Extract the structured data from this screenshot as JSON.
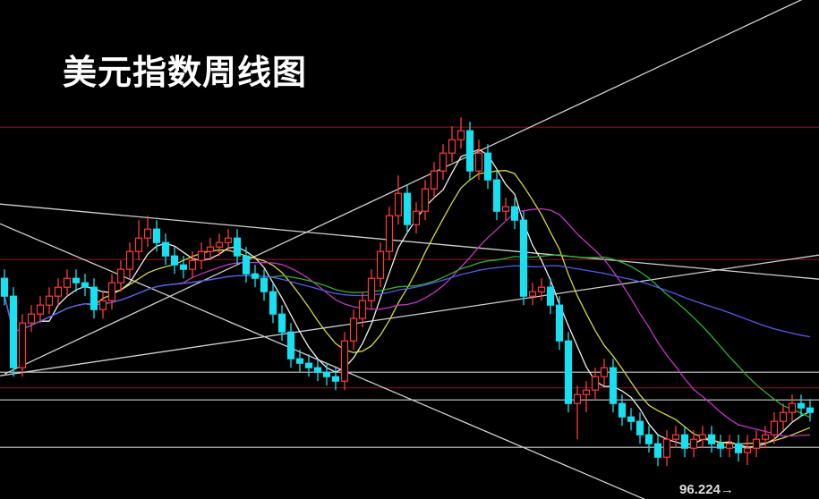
{
  "chart_data": {
    "type": "candlestick",
    "title": "美元指数周线图",
    "x_unit": "week",
    "grid": false,
    "colors": {
      "up": "#ff3b3b",
      "down": "#18e0f0",
      "background": "#000000"
    },
    "candles": [
      [
        100.4,
        100.6,
        99.8,
        100.0
      ],
      [
        100.0,
        100.2,
        98.2,
        98.4
      ],
      [
        98.4,
        99.6,
        98.2,
        99.4
      ],
      [
        99.4,
        99.8,
        99.2,
        99.6
      ],
      [
        99.6,
        100.0,
        99.4,
        99.8
      ],
      [
        99.8,
        100.2,
        99.6,
        100.0
      ],
      [
        100.0,
        100.4,
        99.8,
        100.2
      ],
      [
        100.2,
        100.6,
        100.0,
        100.4
      ],
      [
        100.4,
        100.6,
        100.1,
        100.3
      ],
      [
        100.3,
        100.5,
        100.0,
        100.2
      ],
      [
        100.2,
        100.4,
        99.5,
        99.7
      ],
      [
        99.7,
        100.1,
        99.5,
        99.9
      ],
      [
        99.9,
        100.5,
        99.7,
        100.3
      ],
      [
        100.3,
        100.8,
        100.1,
        100.6
      ],
      [
        100.6,
        101.2,
        100.4,
        101.0
      ],
      [
        101.0,
        101.7,
        100.8,
        101.3
      ],
      [
        101.3,
        101.8,
        101.1,
        101.5
      ],
      [
        101.5,
        101.7,
        101.0,
        101.2
      ],
      [
        101.2,
        101.4,
        100.7,
        100.9
      ],
      [
        100.9,
        101.1,
        100.5,
        100.7
      ],
      [
        100.7,
        100.9,
        100.4,
        100.6
      ],
      [
        100.6,
        101.0,
        100.4,
        100.8
      ],
      [
        100.8,
        101.2,
        100.6,
        101.0
      ],
      [
        101.0,
        101.3,
        100.8,
        101.1
      ],
      [
        101.1,
        101.4,
        100.9,
        101.2
      ],
      [
        101.2,
        101.5,
        101.0,
        101.3
      ],
      [
        101.3,
        101.5,
        100.7,
        100.9
      ],
      [
        100.9,
        101.1,
        100.3,
        100.5
      ],
      [
        100.5,
        100.7,
        100.2,
        100.4
      ],
      [
        100.4,
        100.6,
        99.9,
        100.1
      ],
      [
        100.1,
        100.3,
        99.4,
        99.6
      ],
      [
        99.6,
        99.8,
        99.0,
        99.2
      ],
      [
        99.2,
        99.4,
        98.4,
        98.6
      ],
      [
        98.6,
        98.8,
        98.3,
        98.5
      ],
      [
        98.5,
        98.7,
        98.2,
        98.4
      ],
      [
        98.4,
        98.6,
        98.1,
        98.3
      ],
      [
        98.3,
        98.5,
        98.0,
        98.2
      ],
      [
        98.2,
        98.4,
        97.9,
        98.1
      ],
      [
        98.1,
        99.2,
        97.9,
        99.0
      ],
      [
        99.0,
        99.7,
        98.8,
        99.5
      ],
      [
        99.5,
        100.1,
        99.3,
        99.9
      ],
      [
        99.9,
        100.6,
        99.7,
        100.4
      ],
      [
        100.4,
        101.2,
        100.2,
        101.0
      ],
      [
        101.0,
        102.0,
        100.8,
        101.8
      ],
      [
        101.8,
        102.7,
        101.6,
        102.3
      ],
      [
        102.3,
        102.5,
        101.4,
        101.6
      ],
      [
        101.6,
        102.1,
        101.4,
        101.9
      ],
      [
        101.9,
        102.6,
        101.7,
        102.4
      ],
      [
        102.4,
        103.0,
        102.2,
        102.8
      ],
      [
        102.8,
        103.4,
        102.6,
        103.2
      ],
      [
        103.2,
        103.8,
        103.0,
        103.5
      ],
      [
        103.5,
        104.0,
        103.3,
        103.7
      ],
      [
        103.7,
        103.9,
        102.6,
        102.8
      ],
      [
        102.8,
        103.5,
        102.6,
        103.2
      ],
      [
        103.2,
        103.4,
        102.4,
        102.6
      ],
      [
        102.6,
        102.8,
        101.7,
        101.9
      ],
      [
        101.9,
        102.2,
        101.7,
        102.0
      ],
      [
        102.0,
        102.2,
        101.5,
        101.7
      ],
      [
        101.7,
        101.9,
        99.8,
        100.0
      ],
      [
        100.0,
        100.3,
        99.8,
        100.1
      ],
      [
        100.1,
        100.4,
        99.9,
        100.2
      ],
      [
        100.2,
        100.4,
        99.6,
        99.8
      ],
      [
        99.8,
        100.0,
        98.8,
        99.0
      ],
      [
        99.0,
        99.2,
        97.4,
        97.6
      ],
      [
        97.6,
        98.0,
        96.8,
        97.8
      ],
      [
        97.8,
        98.1,
        97.4,
        97.9
      ],
      [
        97.9,
        98.4,
        97.7,
        98.2
      ],
      [
        98.2,
        98.6,
        98.0,
        98.4
      ],
      [
        98.4,
        98.6,
        97.4,
        97.6
      ],
      [
        97.6,
        97.8,
        97.1,
        97.3
      ],
      [
        97.3,
        97.5,
        97.0,
        97.2
      ],
      [
        97.2,
        97.4,
        96.7,
        96.9
      ],
      [
        96.9,
        97.1,
        96.5,
        96.7
      ],
      [
        96.7,
        96.9,
        96.2,
        96.4
      ],
      [
        96.4,
        97.0,
        96.2,
        96.8
      ],
      [
        96.8,
        97.1,
        96.6,
        96.9
      ],
      [
        96.9,
        97.1,
        96.4,
        96.6
      ],
      [
        96.6,
        97.0,
        96.4,
        96.8
      ],
      [
        96.8,
        97.1,
        96.6,
        96.9
      ],
      [
        96.9,
        97.1,
        96.5,
        96.7
      ],
      [
        96.7,
        96.9,
        96.4,
        96.6
      ],
      [
        96.6,
        96.9,
        96.4,
        96.7
      ],
      [
        96.7,
        96.9,
        96.3,
        96.5
      ],
      [
        96.5,
        96.9,
        96.224,
        96.6
      ],
      [
        96.6,
        97.0,
        96.4,
        96.8
      ],
      [
        96.8,
        97.1,
        96.6,
        96.9
      ],
      [
        96.9,
        97.4,
        96.7,
        97.2
      ],
      [
        97.2,
        97.6,
        97.0,
        97.4
      ],
      [
        97.4,
        97.8,
        97.2,
        97.6
      ],
      [
        97.6,
        97.8,
        97.3,
        97.5
      ],
      [
        97.5,
        97.7,
        97.2,
        97.4
      ]
    ],
    "moving_averages": [
      {
        "period": 5,
        "color": "#f0f0f0"
      },
      {
        "period": 10,
        "color": "#d8d840"
      },
      {
        "period": 20,
        "color": "#c038c0"
      },
      {
        "period": 30,
        "color": "#30b030"
      },
      {
        "period": 60,
        "color": "#5858e8"
      }
    ],
    "horizontal_lines": [
      {
        "price": 103.78,
        "color": "#7a1a1a"
      },
      {
        "price": 100.82,
        "color": "#7a1a1a"
      },
      {
        "price": 97.95,
        "color": "#7a1a1a"
      },
      {
        "price": 98.3,
        "color": "#d0d0d0"
      },
      {
        "price": 97.68,
        "color": "#d0d0d0"
      },
      {
        "price": 96.62,
        "color": "#d0d0d0"
      }
    ],
    "trend_lines": [
      {
        "from": [
          0,
          98.26
        ],
        "to": [
          90,
          106.72
        ],
        "color": "#d0d0d0"
      },
      {
        "from": [
          -0.5,
          102.06
        ],
        "to": [
          91,
          100.38
        ],
        "color": "#d0d0d0"
      },
      {
        "from": [
          -0.5,
          101.62
        ],
        "to": [
          71.5,
          95.46
        ],
        "color": "#d0d0d0"
      },
      {
        "from": [
          -0.5,
          98.22
        ],
        "to": [
          91,
          100.92
        ],
        "color": "#d0d0d0"
      }
    ],
    "annotations": [
      {
        "text": "96.224→",
        "index": 83,
        "price": 96.224
      }
    ]
  }
}
